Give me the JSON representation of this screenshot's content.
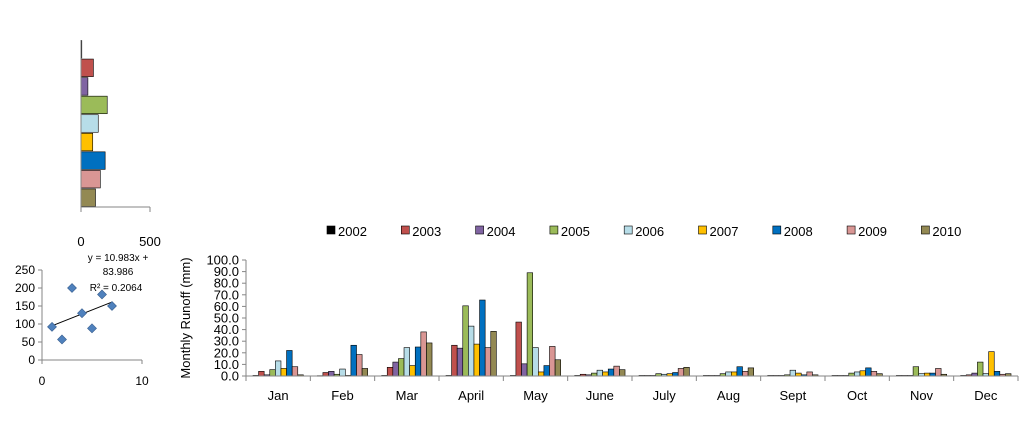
{
  "colors": {
    "2002": "#000000",
    "2003": "#c0504d",
    "2004": "#8064a2",
    "2005": "#9bbb59",
    "2006": "#b7dde8",
    "2007": "#ffc000",
    "2008": "#0070c0",
    "2009": "#d99694",
    "2010": "#938953",
    "scatter_point": "#4f81bd"
  },
  "chart_data": [
    {
      "type": "bar",
      "orientation": "horizontal",
      "categories": [
        "2002",
        "2003",
        "2004",
        "2005",
        "2006",
        "2007",
        "2008",
        "2009",
        "2010"
      ],
      "values": [
        5,
        90,
        50,
        190,
        125,
        85,
        175,
        140,
        105
      ],
      "xlim": [
        0,
        500
      ],
      "xticks": [
        "0",
        "500"
      ],
      "grid": false
    },
    {
      "type": "scatter",
      "points": [
        {
          "x": 1,
          "y": 92
        },
        {
          "x": 2,
          "y": 57
        },
        {
          "x": 3,
          "y": 200
        },
        {
          "x": 4,
          "y": 130
        },
        {
          "x": 5,
          "y": 88
        },
        {
          "x": 6,
          "y": 182
        },
        {
          "x": 7,
          "y": 150
        }
      ],
      "trendline": {
        "slope": 10.983,
        "intercept": 83.986,
        "x_range": [
          1,
          7
        ]
      },
      "annotation": [
        "y = 10.983x +",
        "83.986",
        "R² = 0.2064"
      ],
      "xlim": [
        0,
        10
      ],
      "ylim": [
        0,
        250
      ],
      "xticks": [
        "0",
        "10"
      ],
      "yticks": [
        "0",
        "50",
        "100",
        "150",
        "200",
        "250"
      ],
      "grid": false
    },
    {
      "type": "bar",
      "categories": [
        "Jan",
        "Feb",
        "Mar",
        "April",
        "May",
        "June",
        "July",
        "Aug",
        "Sept",
        "Oct",
        "Nov",
        "Dec"
      ],
      "series": [
        {
          "name": "2002",
          "values": [
            0.5,
            0.3,
            0.5,
            0.5,
            0.5,
            0.5,
            0.5,
            0.5,
            0.5,
            0.5,
            0.5,
            0.5
          ]
        },
        {
          "name": "2003",
          "values": [
            4.0,
            3.0,
            7.5,
            26.5,
            46.5,
            1.5,
            0.5,
            0.5,
            0.5,
            0.5,
            0.5,
            1.0
          ]
        },
        {
          "name": "2004",
          "values": [
            1.0,
            4.0,
            12.0,
            24.0,
            10.5,
            1.0,
            0.5,
            0.5,
            0.5,
            0.5,
            0.5,
            2.5
          ]
        },
        {
          "name": "2005",
          "values": [
            5.5,
            1.5,
            15.0,
            60.5,
            89.0,
            2.5,
            2.0,
            2.0,
            1.0,
            2.5,
            8.0,
            12.0
          ]
        },
        {
          "name": "2006",
          "values": [
            13.0,
            6.0,
            24.5,
            43.0,
            24.5,
            5.0,
            1.5,
            3.5,
            5.0,
            3.5,
            2.0,
            2.0
          ]
        },
        {
          "name": "2007",
          "values": [
            6.5,
            0.5,
            9.0,
            27.5,
            3.5,
            3.5,
            2.0,
            3.5,
            2.5,
            4.5,
            2.5,
            21.0
          ]
        },
        {
          "name": "2008",
          "values": [
            22.0,
            26.5,
            25.0,
            65.5,
            9.0,
            6.0,
            3.0,
            8.0,
            1.0,
            7.0,
            2.5,
            4.0
          ]
        },
        {
          "name": "2009",
          "values": [
            8.0,
            18.5,
            38.0,
            24.5,
            25.5,
            8.5,
            6.5,
            4.0,
            3.5,
            4.0,
            6.5,
            1.5
          ]
        },
        {
          "name": "2010",
          "values": [
            1.0,
            6.5,
            28.5,
            38.5,
            14.0,
            5.5,
            7.5,
            7.0,
            1.0,
            2.0,
            1.5,
            2.0
          ]
        }
      ],
      "ylabel": "Monthly  Runoff (mm)",
      "ylim": [
        0,
        100
      ],
      "yticks": [
        "0.0",
        "10.0",
        "20.0",
        "30.0",
        "40.0",
        "50.0",
        "60.0",
        "70.0",
        "80.0",
        "90.0",
        "100.0"
      ],
      "legend": "top",
      "grid": false
    }
  ]
}
